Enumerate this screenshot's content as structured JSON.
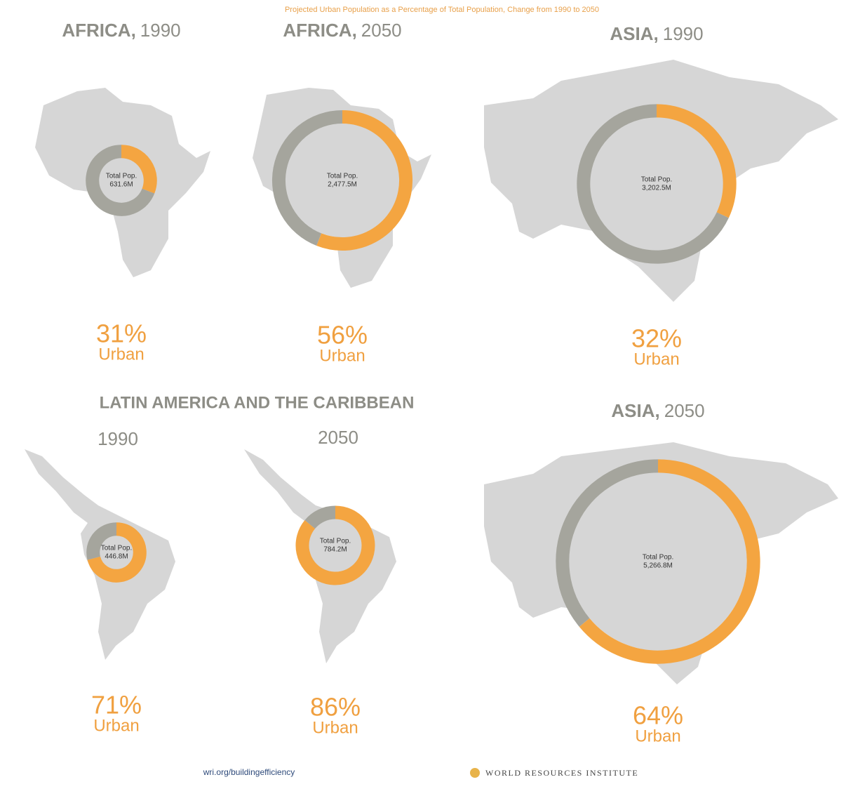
{
  "header": {
    "title": "Projected Urban Population as a Percentage of Total Population, Change from 1990 to 2050"
  },
  "group_heading": "LATIN AMERICA AND THE CARIBBEAN",
  "chart_data": [
    {
      "type": "donut",
      "title": "AFRICA,",
      "subtitle": "1990",
      "categories": [
        "Urban",
        null
      ],
      "values": [
        31,
        69
      ],
      "value_labels": [
        "31%",
        null
      ],
      "total_title": "Total Pop.",
      "total": 631.6,
      "total_label": "631.6M",
      "colors": [
        "#f4a541",
        "#a5a59d"
      ]
    },
    {
      "type": "donut",
      "title": "AFRICA,",
      "subtitle": "2050",
      "categories": [
        "Urban",
        null
      ],
      "values": [
        56,
        44
      ],
      "value_labels": [
        "56%",
        null
      ],
      "total_title": "Total Pop.",
      "total": 2477.5,
      "total_label": "2,477.5M",
      "colors": [
        "#f4a541",
        "#a5a59d"
      ]
    },
    {
      "type": "donut",
      "title": "ASIA,",
      "subtitle": "1990",
      "categories": [
        "Urban",
        null
      ],
      "values": [
        32,
        68
      ],
      "value_labels": [
        "32%",
        null
      ],
      "total_title": "Total Pop.",
      "total": 3202.5,
      "total_label": "3,202.5M",
      "colors": [
        "#f4a541",
        "#a5a59d"
      ]
    },
    {
      "type": "donut",
      "subtitle": "1990",
      "categories": [
        "Urban",
        null
      ],
      "values": [
        71,
        29
      ],
      "value_labels": [
        "71%",
        null
      ],
      "total_title": "Total Pop.",
      "total": 446.8,
      "total_label": "446.8M",
      "colors": [
        "#f4a541",
        "#a5a59d"
      ]
    },
    {
      "type": "donut",
      "subtitle": "2050",
      "categories": [
        "Urban",
        null
      ],
      "values": [
        86,
        14
      ],
      "value_labels": [
        "86%",
        null
      ],
      "total_title": "Total Pop.",
      "total": 784.2,
      "total_label": "784.2M",
      "colors": [
        "#f4a541",
        "#a5a59d"
      ]
    },
    {
      "type": "donut",
      "title": "ASIA,",
      "subtitle": "2050",
      "categories": [
        "Urban",
        null
      ],
      "values": [
        64,
        36
      ],
      "value_labels": [
        "64%",
        null
      ],
      "total_title": "Total Pop.",
      "total": 5266.8,
      "total_label": "5,266.8M",
      "colors": [
        "#f4a541",
        "#a5a59d"
      ]
    }
  ],
  "footer": {
    "url": "wri.org/buildingefficiency",
    "org": "WORLD RESOURCES INSTITUTE"
  }
}
